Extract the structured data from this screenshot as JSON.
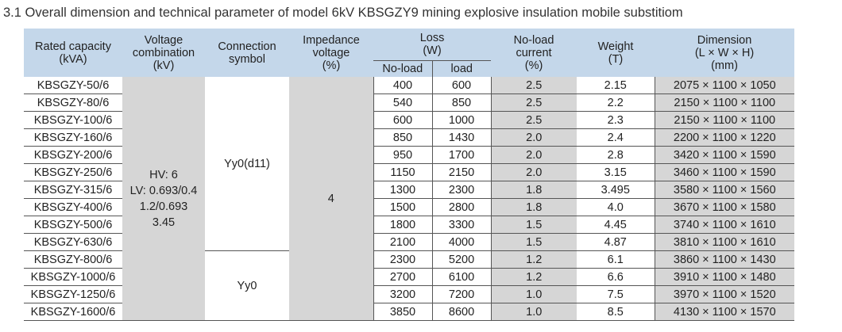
{
  "title": "3.1 Overall dimension and technical parameter of model 6kV KBSGZY9 mining explosive insulation mobile substitiom",
  "headers": {
    "rated_capacity": [
      "Rated capacity",
      "(kVA)"
    ],
    "voltage_combination": [
      "Voltage",
      "combination",
      "(kV)"
    ],
    "connection_symbol": [
      "Connection",
      "symbol"
    ],
    "impedance_voltage": [
      "Impedance",
      "voltage",
      "(%)"
    ],
    "loss": [
      "Loss",
      "(W)"
    ],
    "loss_noload": "No-load",
    "loss_load": "load",
    "noload_current": [
      "No-load",
      "current",
      "(%)"
    ],
    "weight": [
      "Weight",
      "(T)"
    ],
    "dimension": [
      "Dimension",
      "(L × W × H)",
      "(mm)"
    ]
  },
  "voltage_combination_value": [
    "HV: 6",
    "LV: 0.693/0.4",
    "1.2/0.693",
    "3.45"
  ],
  "connection_group_1": "Yy0(d11)",
  "connection_group_2": "Yy0",
  "impedance_value": "4",
  "rows": [
    {
      "model": "KBSGZY-50/6",
      "noload": "400",
      "load": "600",
      "current": "2.5",
      "weight": "2.15",
      "dimension": "2075 × 1100 × 1050"
    },
    {
      "model": "KBSGZY-80/6",
      "noload": "540",
      "load": "850",
      "current": "2.5",
      "weight": "2.2",
      "dimension": "2150 × 1100 × 1100"
    },
    {
      "model": "KBSGZY-100/6",
      "noload": "600",
      "load": "1000",
      "current": "2.5",
      "weight": "2.3",
      "dimension": "2150 × 1100 × 1100"
    },
    {
      "model": "KBSGZY-160/6",
      "noload": "850",
      "load": "1430",
      "current": "2.0",
      "weight": "2.4",
      "dimension": "2200 × 1100 × 1220"
    },
    {
      "model": "KBSGZY-200/6",
      "noload": "950",
      "load": "1700",
      "current": "2.0",
      "weight": "2.8",
      "dimension": "3420 × 1100 × 1590"
    },
    {
      "model": "KBSGZY-250/6",
      "noload": "1150",
      "load": "2150",
      "current": "2.0",
      "weight": "3.15",
      "dimension": "3460 × 1100 × 1590"
    },
    {
      "model": "KBSGZY-315/6",
      "noload": "1300",
      "load": "2300",
      "current": "1.8",
      "weight": "3.495",
      "dimension": "3580 × 1100 × 1560"
    },
    {
      "model": "KBSGZY-400/6",
      "noload": "1500",
      "load": "2800",
      "current": "1.8",
      "weight": "4.0",
      "dimension": "3670 × 1100 × 1580"
    },
    {
      "model": "KBSGZY-500/6",
      "noload": "1800",
      "load": "3300",
      "current": "1.5",
      "weight": "4.45",
      "dimension": "3740 × 1100 × 1610"
    },
    {
      "model": "KBSGZY-630/6",
      "noload": "2100",
      "load": "4000",
      "current": "1.5",
      "weight": "4.87",
      "dimension": "3810 × 1100 × 1610"
    },
    {
      "model": "KBSGZY-800/6",
      "noload": "2300",
      "load": "5200",
      "current": "1.2",
      "weight": "6.1",
      "dimension": "3860 × 1100 × 1430"
    },
    {
      "model": "KBSGZY-1000/6",
      "noload": "2700",
      "load": "6100",
      "current": "1.2",
      "weight": "6.6",
      "dimension": "3910 × 1100 × 1480"
    },
    {
      "model": "KBSGZY-1250/6",
      "noload": "3200",
      "load": "7200",
      "current": "1.0",
      "weight": "7.5",
      "dimension": "3970 × 1100 × 1520"
    },
    {
      "model": "KBSGZY-1600/6",
      "noload": "3850",
      "load": "8600",
      "current": "1.0",
      "weight": "8.5",
      "dimension": "4130 × 1100 × 1570"
    }
  ],
  "colors": {
    "header_bg": "#c4d7ea",
    "shaded_cell": "#d6d6d6",
    "border": "#555555"
  }
}
